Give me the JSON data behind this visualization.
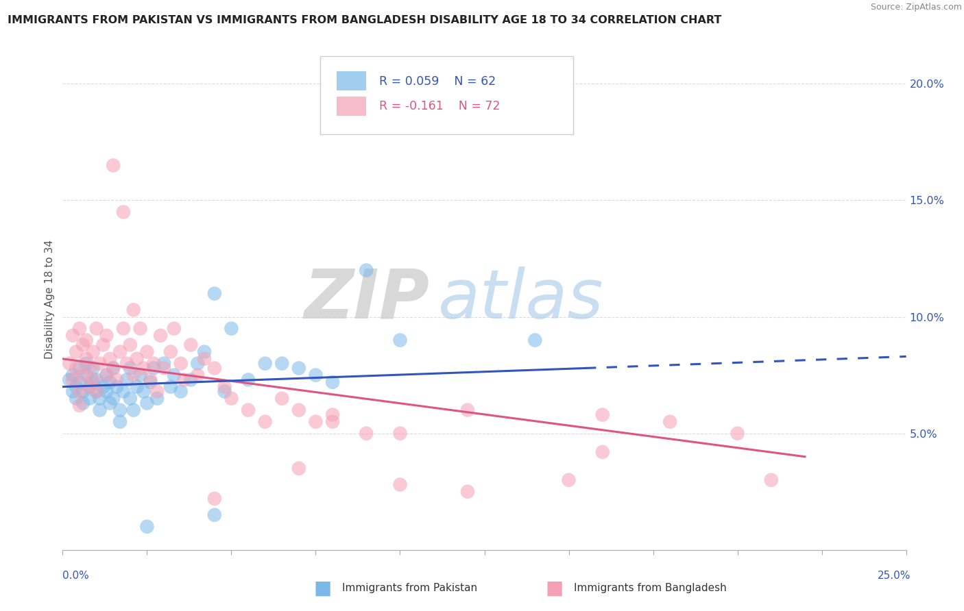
{
  "title": "IMMIGRANTS FROM PAKISTAN VS IMMIGRANTS FROM BANGLADESH DISABILITY AGE 18 TO 34 CORRELATION CHART",
  "source": "Source: ZipAtlas.com",
  "ylabel": "Disability Age 18 to 34",
  "xlim": [
    0.0,
    0.25
  ],
  "ylim": [
    0.0,
    0.215
  ],
  "pakistan_color": "#7ab8e8",
  "bangladesh_color": "#f5a0b5",
  "pak_line_color": "#3355bb",
  "ban_line_color": "#e05580",
  "legend_R_pakistan": "R = 0.059",
  "legend_N_pakistan": "N = 62",
  "legend_R_bangladesh": "R = -0.161",
  "legend_N_bangladesh": "N = 72",
  "pak_line_x0": 0.0,
  "pak_line_y0": 0.07,
  "pak_line_x1": 0.155,
  "pak_line_y1": 0.078,
  "pak_line_dash_x1": 0.25,
  "pak_line_dash_y1": 0.083,
  "ban_line_x0": 0.0,
  "ban_line_y0": 0.082,
  "ban_line_x1": 0.22,
  "ban_line_y1": 0.04,
  "ytick_vals": [
    0.05,
    0.1,
    0.15,
    0.2
  ],
  "ytick_labels": [
    "5.0%",
    "10.0%",
    "15.0%",
    "20.0%"
  ],
  "pakistan_scatter": [
    [
      0.002,
      0.073
    ],
    [
      0.003,
      0.068
    ],
    [
      0.003,
      0.075
    ],
    [
      0.004,
      0.07
    ],
    [
      0.004,
      0.065
    ],
    [
      0.005,
      0.078
    ],
    [
      0.005,
      0.072
    ],
    [
      0.006,
      0.068
    ],
    [
      0.006,
      0.063
    ],
    [
      0.007,
      0.075
    ],
    [
      0.007,
      0.08
    ],
    [
      0.008,
      0.07
    ],
    [
      0.008,
      0.065
    ],
    [
      0.009,
      0.072
    ],
    [
      0.009,
      0.078
    ],
    [
      0.01,
      0.068
    ],
    [
      0.01,
      0.073
    ],
    [
      0.011,
      0.065
    ],
    [
      0.011,
      0.06
    ],
    [
      0.012,
      0.07
    ],
    [
      0.013,
      0.075
    ],
    [
      0.013,
      0.068
    ],
    [
      0.014,
      0.063
    ],
    [
      0.014,
      0.072
    ],
    [
      0.015,
      0.078
    ],
    [
      0.015,
      0.065
    ],
    [
      0.016,
      0.07
    ],
    [
      0.017,
      0.06
    ],
    [
      0.017,
      0.055
    ],
    [
      0.018,
      0.068
    ],
    [
      0.019,
      0.073
    ],
    [
      0.02,
      0.078
    ],
    [
      0.02,
      0.065
    ],
    [
      0.021,
      0.06
    ],
    [
      0.022,
      0.07
    ],
    [
      0.023,
      0.075
    ],
    [
      0.024,
      0.068
    ],
    [
      0.025,
      0.063
    ],
    [
      0.026,
      0.072
    ],
    [
      0.027,
      0.078
    ],
    [
      0.028,
      0.065
    ],
    [
      0.03,
      0.08
    ],
    [
      0.032,
      0.07
    ],
    [
      0.033,
      0.075
    ],
    [
      0.035,
      0.068
    ],
    [
      0.038,
      0.073
    ],
    [
      0.04,
      0.08
    ],
    [
      0.042,
      0.085
    ],
    [
      0.045,
      0.11
    ],
    [
      0.048,
      0.068
    ],
    [
      0.05,
      0.095
    ],
    [
      0.055,
      0.073
    ],
    [
      0.06,
      0.08
    ],
    [
      0.065,
      0.08
    ],
    [
      0.07,
      0.078
    ],
    [
      0.075,
      0.075
    ],
    [
      0.08,
      0.072
    ],
    [
      0.09,
      0.12
    ],
    [
      0.1,
      0.09
    ],
    [
      0.14,
      0.09
    ],
    [
      0.025,
      0.01
    ],
    [
      0.045,
      0.015
    ]
  ],
  "bangladesh_scatter": [
    [
      0.002,
      0.08
    ],
    [
      0.003,
      0.073
    ],
    [
      0.003,
      0.092
    ],
    [
      0.004,
      0.085
    ],
    [
      0.004,
      0.078
    ],
    [
      0.005,
      0.095
    ],
    [
      0.005,
      0.068
    ],
    [
      0.006,
      0.088
    ],
    [
      0.006,
      0.075
    ],
    [
      0.007,
      0.082
    ],
    [
      0.007,
      0.09
    ],
    [
      0.008,
      0.078
    ],
    [
      0.008,
      0.07
    ],
    [
      0.009,
      0.085
    ],
    [
      0.009,
      0.073
    ],
    [
      0.01,
      0.095
    ],
    [
      0.01,
      0.068
    ],
    [
      0.011,
      0.08
    ],
    [
      0.012,
      0.088
    ],
    [
      0.013,
      0.075
    ],
    [
      0.013,
      0.092
    ],
    [
      0.014,
      0.082
    ],
    [
      0.015,
      0.078
    ],
    [
      0.015,
      0.165
    ],
    [
      0.016,
      0.073
    ],
    [
      0.017,
      0.085
    ],
    [
      0.018,
      0.095
    ],
    [
      0.018,
      0.145
    ],
    [
      0.019,
      0.08
    ],
    [
      0.02,
      0.088
    ],
    [
      0.021,
      0.075
    ],
    [
      0.021,
      0.103
    ],
    [
      0.022,
      0.082
    ],
    [
      0.023,
      0.095
    ],
    [
      0.024,
      0.078
    ],
    [
      0.025,
      0.085
    ],
    [
      0.026,
      0.073
    ],
    [
      0.027,
      0.08
    ],
    [
      0.028,
      0.068
    ],
    [
      0.029,
      0.092
    ],
    [
      0.03,
      0.078
    ],
    [
      0.032,
      0.085
    ],
    [
      0.033,
      0.095
    ],
    [
      0.035,
      0.08
    ],
    [
      0.036,
      0.073
    ],
    [
      0.038,
      0.088
    ],
    [
      0.04,
      0.075
    ],
    [
      0.042,
      0.082
    ],
    [
      0.045,
      0.078
    ],
    [
      0.048,
      0.07
    ],
    [
      0.05,
      0.065
    ],
    [
      0.055,
      0.06
    ],
    [
      0.06,
      0.055
    ],
    [
      0.065,
      0.065
    ],
    [
      0.07,
      0.06
    ],
    [
      0.075,
      0.055
    ],
    [
      0.08,
      0.058
    ],
    [
      0.09,
      0.05
    ],
    [
      0.1,
      0.05
    ],
    [
      0.12,
      0.06
    ],
    [
      0.16,
      0.058
    ],
    [
      0.18,
      0.055
    ],
    [
      0.2,
      0.05
    ],
    [
      0.21,
      0.03
    ],
    [
      0.045,
      0.022
    ],
    [
      0.07,
      0.035
    ],
    [
      0.1,
      0.028
    ],
    [
      0.15,
      0.03
    ],
    [
      0.005,
      0.062
    ],
    [
      0.12,
      0.025
    ],
    [
      0.16,
      0.042
    ],
    [
      0.08,
      0.055
    ]
  ],
  "background_color": "#ffffff",
  "grid_color": "#cccccc",
  "watermark_zip": "ZIP",
  "watermark_atlas": "atlas"
}
